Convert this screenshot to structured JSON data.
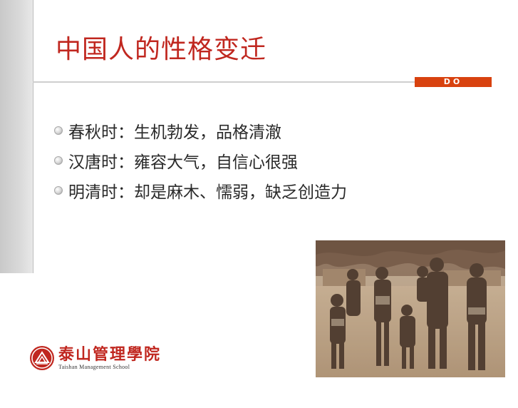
{
  "slide": {
    "title": "中国人的性格变迁",
    "tag": "DO",
    "bullets": [
      {
        "text": "春秋时：生机勃发，品格清澈"
      },
      {
        "text": "汉唐时：雍容大气，自信心很强"
      },
      {
        "text": "明清时：却是麻木、懦弱，缺乏创造力"
      }
    ]
  },
  "logo": {
    "name_cn": "泰山管理學院",
    "name_en": "Taishan Management School"
  },
  "colors": {
    "title": "#c0271f",
    "tag_bg": "#d8420f",
    "left_band": "#d4d4d4",
    "photo_tone": "#b79f84"
  }
}
